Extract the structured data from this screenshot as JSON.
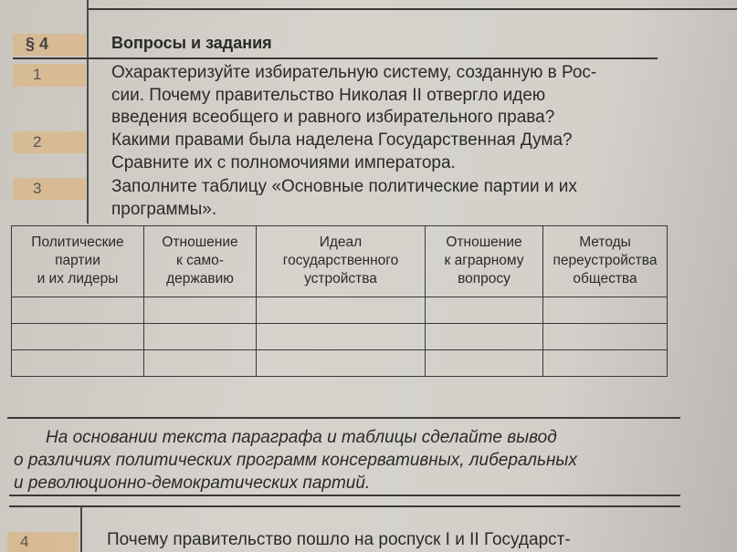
{
  "section": {
    "label": "§ 4",
    "title": "Вопросы и задания"
  },
  "questions": [
    {
      "num": "1",
      "lines": [
        "Охарактеризуйте избирательную систему, созданную в Рос-",
        "сии. Почему правительство Николая II отвергло идею",
        "введения всеобщего и равного избирательного права?"
      ]
    },
    {
      "num": "2",
      "lines": [
        "Какими правами была наделена Государственная Дума?",
        "Сравните их с полномочиями императора."
      ]
    },
    {
      "num": "3",
      "lines": [
        "Заполните таблицу «Основные политические партии и их",
        "программы»."
      ]
    },
    {
      "num": "4",
      "lines": [
        "Почему правительство пошло на роспуск I и II Государст-"
      ]
    }
  ],
  "table": {
    "headers": [
      [
        "Политические",
        "партии",
        "и их лидеры"
      ],
      [
        "Отношение",
        "к само-",
        "державию"
      ],
      [
        "Идеал",
        "государственного",
        "устройства"
      ],
      [
        "Отношение",
        "к аграрному",
        "вопросу"
      ],
      [
        "Методы",
        "переустройства",
        "общества"
      ]
    ]
  },
  "conclusion": {
    "lines": [
      "На основании текста параграфа и таблицы сделайте вывод",
      "о различиях политических программ консервативных, либеральных",
      "и революционно-демократических партий."
    ]
  },
  "colors": {
    "number_band": "#d9b98c",
    "paper": "#d3d0ca",
    "ink": "#2b2a2a"
  }
}
